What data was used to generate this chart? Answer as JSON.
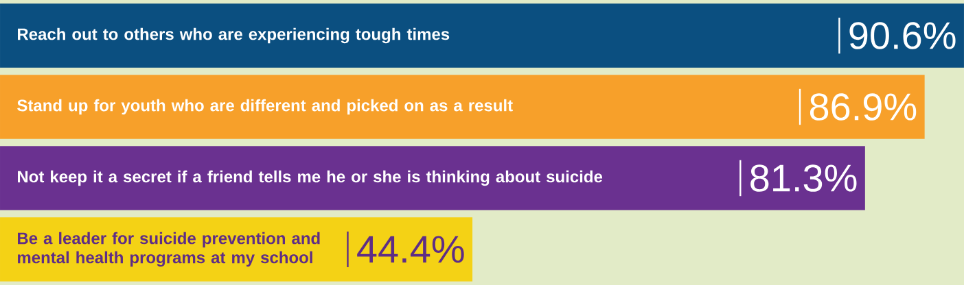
{
  "chart_data": {
    "type": "bar",
    "orientation": "horizontal",
    "categories": [
      "Reach out to others who are experiencing tough times",
      "Stand up for youth who are different and picked on as a result",
      "Not keep it a secret if a friend tells me he or she is thinking about suicide",
      "Be a leader for suicide prevention and mental health programs at my school"
    ],
    "values": [
      90.6,
      86.9,
      81.3,
      44.4
    ],
    "colors": [
      "#0b4f80",
      "#f7a02a",
      "#6a3190",
      "#f4d215"
    ],
    "value_labels": [
      "90.6%",
      "86.9%",
      "81.3%",
      "44.4%"
    ]
  }
}
